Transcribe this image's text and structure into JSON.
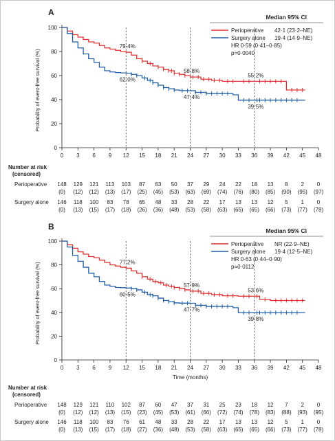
{
  "panels": [
    {
      "letter": "A",
      "legend_title": "Median 95% CI",
      "legend": [
        {
          "label": "Perioperative",
          "value": "42·1 (23·2–NE)"
        },
        {
          "label": "Surgery alone",
          "value": "19·4 (14·9–NE)"
        }
      ],
      "hr_lines": [
        "HR 0·59 (0·41–0·85)",
        "p=0·0040"
      ],
      "annotations": [
        {
          "text": "79·4%",
          "x": 12,
          "y": 79.4,
          "series": 0
        },
        {
          "text": "58·8%",
          "x": 24,
          "y": 58.8,
          "series": 0
        },
        {
          "text": "55·2%",
          "x": 36,
          "y": 55.2,
          "series": 0
        },
        {
          "text": "62·0%",
          "x": 12,
          "y": 62.0,
          "series": 1
        },
        {
          "text": "47·4%",
          "x": 24,
          "y": 47.4,
          "series": 1
        },
        {
          "text": "39·5%",
          "x": 36,
          "y": 39.5,
          "series": 1
        }
      ],
      "xlabel": "",
      "risk_title": [
        "Number at risk",
        "(censored)"
      ],
      "risk_rows": [
        {
          "label": "Perioperative",
          "at_risk": [
            "148",
            "129",
            "121",
            "113",
            "103",
            "87",
            "63",
            "50",
            "37",
            "29",
            "24",
            "22",
            "18",
            "13",
            "8",
            "2",
            "0"
          ],
          "censored": [
            "(0)",
            "(12)",
            "(12)",
            "(13)",
            "(17)",
            "(25)",
            "(45)",
            "(53)",
            "(63)",
            "(69)",
            "(74)",
            "(76)",
            "(80)",
            "(85)",
            "(90)",
            "(95)",
            "(97)"
          ]
        },
        {
          "label": "Surgery alone",
          "at_risk": [
            "146",
            "118",
            "100",
            "83",
            "78",
            "65",
            "48",
            "33",
            "28",
            "22",
            "17",
            "13",
            "13",
            "12",
            "5",
            "1",
            "0"
          ],
          "censored": [
            "(0)",
            "(13)",
            "(15)",
            "(17)",
            "(18)",
            "(26)",
            "(36)",
            "(48)",
            "(53)",
            "(58)",
            "(63)",
            "(65)",
            "(65)",
            "(66)",
            "(73)",
            "(77)",
            "(78)"
          ]
        }
      ]
    },
    {
      "letter": "B",
      "legend_title": "Median 95% CI",
      "legend": [
        {
          "label": "Perioperative",
          "value": "NR (22·9–NE)"
        },
        {
          "label": "Surgery alone",
          "value": "19·4 (12·5–NE)"
        }
      ],
      "hr_lines": [
        "HR 0·63 (0·44–0·90)",
        "p=0·0112"
      ],
      "annotations": [
        {
          "text": "77.2%",
          "x": 12,
          "y": 77.2,
          "series": 0
        },
        {
          "text": "57·9%",
          "x": 24,
          "y": 57.9,
          "series": 0
        },
        {
          "text": "53·6%",
          "x": 36,
          "y": 53.6,
          "series": 0
        },
        {
          "text": "60·5%",
          "x": 12,
          "y": 60.5,
          "series": 1
        },
        {
          "text": "47·7%",
          "x": 24,
          "y": 47.7,
          "series": 1
        },
        {
          "text": "39·8%",
          "x": 36,
          "y": 39.8,
          "series": 1
        }
      ],
      "xlabel": "Time (months)",
      "risk_title": [
        "Number at risk",
        "(censored)"
      ],
      "risk_rows": [
        {
          "label": "Perioperative",
          "at_risk": [
            "148",
            "129",
            "121",
            "110",
            "102",
            "87",
            "60",
            "47",
            "37",
            "31",
            "25",
            "23",
            "18",
            "12",
            "7",
            "2",
            "0"
          ],
          "censored": [
            "(0)",
            "(12)",
            "(12)",
            "(13)",
            "(15)",
            "(23)",
            "(45)",
            "(53)",
            "(61)",
            "(66)",
            "(72)",
            "(74)",
            "(78)",
            "(83)",
            "(88)",
            "(93)",
            "(95)"
          ]
        },
        {
          "label": "Surgery alone",
          "at_risk": [
            "146",
            "118",
            "100",
            "83",
            "76",
            "61",
            "48",
            "33",
            "28",
            "22",
            "17",
            "13",
            "13",
            "12",
            "5",
            "1",
            "0"
          ],
          "censored": [
            "(0)",
            "(13)",
            "(15)",
            "(17)",
            "(18)",
            "(27)",
            "(36)",
            "(48)",
            "(53)",
            "(58)",
            "(63)",
            "(65)",
            "(65)",
            "(66)",
            "(73)",
            "(77)",
            "(78)"
          ]
        }
      ]
    }
  ],
  "chart_data": [
    {
      "type": "line",
      "title": "",
      "ylabel": "Probability of event-free survival (%)",
      "xlabel": "",
      "xlim": [
        0,
        48
      ],
      "ylim": [
        0,
        100
      ],
      "xticks": [
        0,
        3,
        6,
        9,
        12,
        15,
        18,
        21,
        24,
        27,
        30,
        33,
        36,
        39,
        42,
        45,
        48
      ],
      "yticks": [
        0,
        20,
        40,
        60,
        80,
        100
      ],
      "grid": false,
      "legend_position": "top-right",
      "series": [
        {
          "name": "Perioperative",
          "color": "#e03030",
          "x": [
            0,
            1,
            2,
            3,
            4,
            5,
            6,
            7,
            8,
            9,
            10,
            11,
            12,
            13,
            14,
            15,
            16,
            17,
            18,
            19,
            20,
            21,
            22,
            23,
            24,
            26,
            28,
            30,
            33,
            36,
            38,
            40,
            42,
            45.5
          ],
          "y": [
            100,
            97,
            94,
            92,
            90,
            88,
            87,
            85,
            83,
            82,
            81,
            80,
            79.4,
            77,
            74,
            72,
            70,
            68,
            67,
            65,
            64,
            62,
            61,
            60,
            58.8,
            57,
            56,
            55.2,
            55.2,
            55.2,
            55.2,
            55.2,
            48,
            48
          ],
          "censor_x": [
            15,
            16.5,
            18,
            19,
            20,
            20.5,
            21,
            22,
            23,
            24.5,
            25.5,
            26.5,
            27.5,
            28.5,
            29.5,
            31,
            32,
            34,
            35,
            37,
            38,
            39,
            40,
            41,
            43,
            44,
            45
          ]
        },
        {
          "name": "Surgery alone",
          "color": "#1f5fa8",
          "x": [
            0,
            1,
            2,
            3,
            4,
            5,
            6,
            7,
            8,
            9,
            10,
            11,
            12,
            13,
            14,
            15,
            16,
            17,
            18,
            19,
            20,
            21,
            22,
            24,
            25,
            27,
            29,
            31,
            32,
            33,
            36,
            40,
            45.5
          ],
          "y": [
            100,
            95,
            88,
            83,
            78,
            74,
            71,
            67,
            64,
            63,
            62.5,
            62.2,
            62,
            61,
            60,
            58,
            56,
            54,
            52,
            50,
            49,
            48,
            47.5,
            47.4,
            46,
            45,
            45,
            45,
            44,
            39.5,
            39.5,
            39.5,
            39.5
          ],
          "censor_x": [
            13,
            14,
            15.5,
            16.5,
            17,
            18,
            19,
            20,
            21,
            22.5,
            23.5,
            25,
            26,
            27,
            28,
            29,
            30,
            31,
            34,
            35,
            36.5,
            37,
            38,
            39,
            40,
            41,
            42,
            43,
            44
          ]
        }
      ]
    },
    {
      "type": "line",
      "title": "",
      "ylabel": "Probability of event-free survival (%)",
      "xlabel": "Time (months)",
      "xlim": [
        0,
        48
      ],
      "ylim": [
        0,
        100
      ],
      "xticks": [
        0,
        3,
        6,
        9,
        12,
        15,
        18,
        21,
        24,
        27,
        30,
        33,
        36,
        39,
        42,
        45,
        48
      ],
      "yticks": [
        0,
        20,
        40,
        60,
        80,
        100
      ],
      "grid": false,
      "legend_position": "top-right",
      "series": [
        {
          "name": "Perioperative",
          "color": "#e03030",
          "x": [
            0,
            1,
            2,
            3,
            4,
            5,
            6,
            7,
            8,
            9,
            10,
            11,
            12,
            13,
            14,
            15,
            16,
            17,
            18,
            19,
            20,
            21,
            22,
            23,
            24,
            26,
            28,
            30,
            33,
            36,
            37,
            39,
            45.5
          ],
          "y": [
            100,
            97,
            94,
            91,
            89,
            87,
            86,
            84,
            82,
            80,
            79,
            78,
            77.2,
            75,
            73,
            70,
            68,
            66,
            65,
            63,
            62,
            61,
            60,
            59,
            57.9,
            56,
            55,
            54,
            53.6,
            53.6,
            51,
            50,
            50
          ],
          "censor_x": [
            15,
            16.5,
            17.5,
            18.5,
            19.5,
            20.5,
            21,
            22,
            23,
            24.5,
            25.5,
            26.5,
            27.5,
            28.5,
            29.5,
            31,
            32,
            34,
            35,
            36.5,
            38,
            40,
            41,
            42,
            43,
            44,
            45
          ]
        },
        {
          "name": "Surgery alone",
          "color": "#1f5fa8",
          "x": [
            0,
            1,
            2,
            3,
            4,
            5,
            6,
            7,
            8,
            9,
            10,
            11,
            12,
            13,
            14,
            15,
            16,
            17,
            18,
            19,
            20,
            21,
            22,
            24,
            25,
            27,
            29,
            31,
            32,
            33,
            36,
            40,
            45.5
          ],
          "y": [
            100,
            95,
            88,
            83,
            78,
            73,
            70,
            66,
            63,
            62,
            61,
            60.8,
            60.5,
            60,
            59,
            57,
            55,
            54,
            52,
            50,
            49,
            48,
            47.8,
            47.7,
            46,
            45,
            45,
            45,
            44,
            39.8,
            39.8,
            39.8,
            39.8
          ],
          "censor_x": [
            13,
            14,
            15.5,
            16.5,
            17,
            18,
            19,
            20,
            21,
            22.5,
            23.5,
            25,
            26,
            27,
            28,
            29,
            30,
            31,
            34,
            35,
            36.5,
            37,
            38,
            39,
            40,
            41,
            42,
            43,
            44
          ]
        }
      ]
    }
  ]
}
